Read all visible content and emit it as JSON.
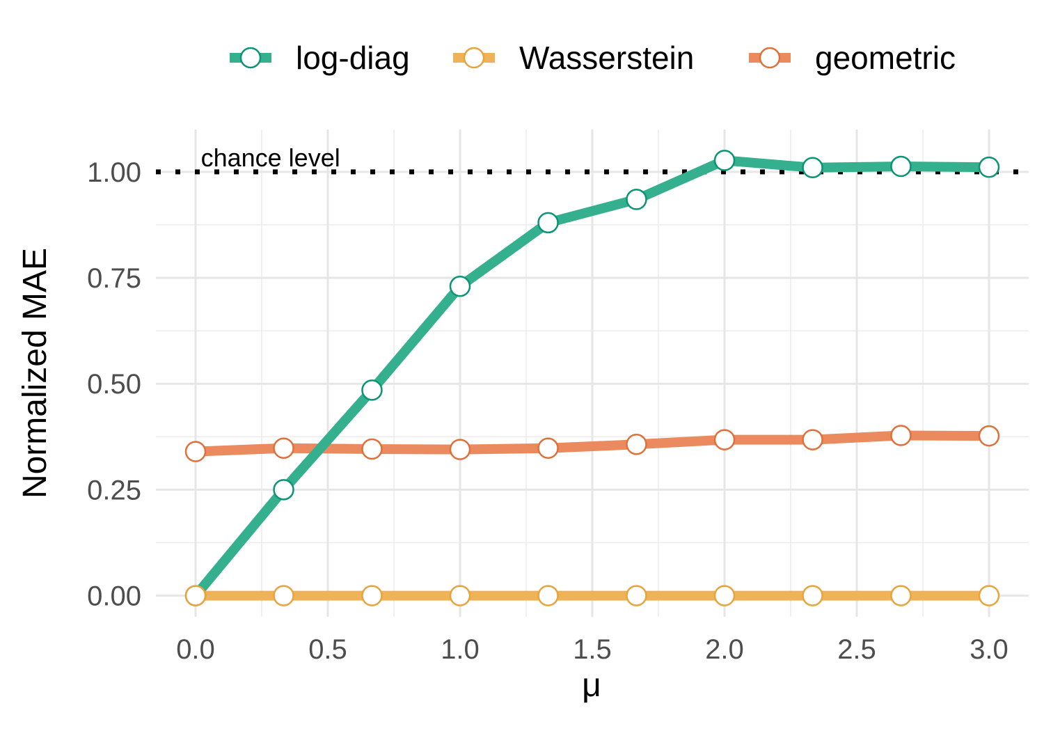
{
  "chart_data": {
    "type": "line",
    "title": "",
    "xlabel": "μ",
    "ylabel": "Normalized MAE",
    "xlim": [
      -0.15,
      3.15
    ],
    "ylim": [
      -0.05,
      1.1
    ],
    "x_ticks": [
      "0.0",
      "0.5",
      "1.0",
      "1.5",
      "2.0",
      "2.5",
      "3.0"
    ],
    "y_ticks": [
      "0.00",
      "0.25",
      "0.50",
      "0.75",
      "1.00"
    ],
    "grid": true,
    "legend_position": "top",
    "reference_line": {
      "y": 1.0,
      "style": "dotted",
      "label": "chance level"
    },
    "x": [
      0.0,
      0.333,
      0.667,
      1.0,
      1.333,
      1.667,
      2.0,
      2.333,
      2.667,
      3.0
    ],
    "series": [
      {
        "name": "log-diag",
        "color": "#35b08f",
        "marker_edge": "#0a9474",
        "values": [
          0.0,
          0.25,
          0.485,
          0.73,
          0.88,
          0.935,
          1.027,
          1.01,
          1.013,
          1.011
        ]
      },
      {
        "name": "Wasserstein",
        "color": "#f0b258",
        "marker_edge": "#e8a33a",
        "values": [
          0.0,
          0.0,
          0.0,
          0.0,
          0.0,
          0.0,
          0.0,
          0.0,
          0.0,
          0.0
        ]
      },
      {
        "name": "geometric",
        "color": "#ea8a5e",
        "marker_edge": "#e0703a",
        "values": [
          0.34,
          0.348,
          0.346,
          0.345,
          0.348,
          0.357,
          0.368,
          0.368,
          0.378,
          0.377
        ]
      }
    ]
  }
}
